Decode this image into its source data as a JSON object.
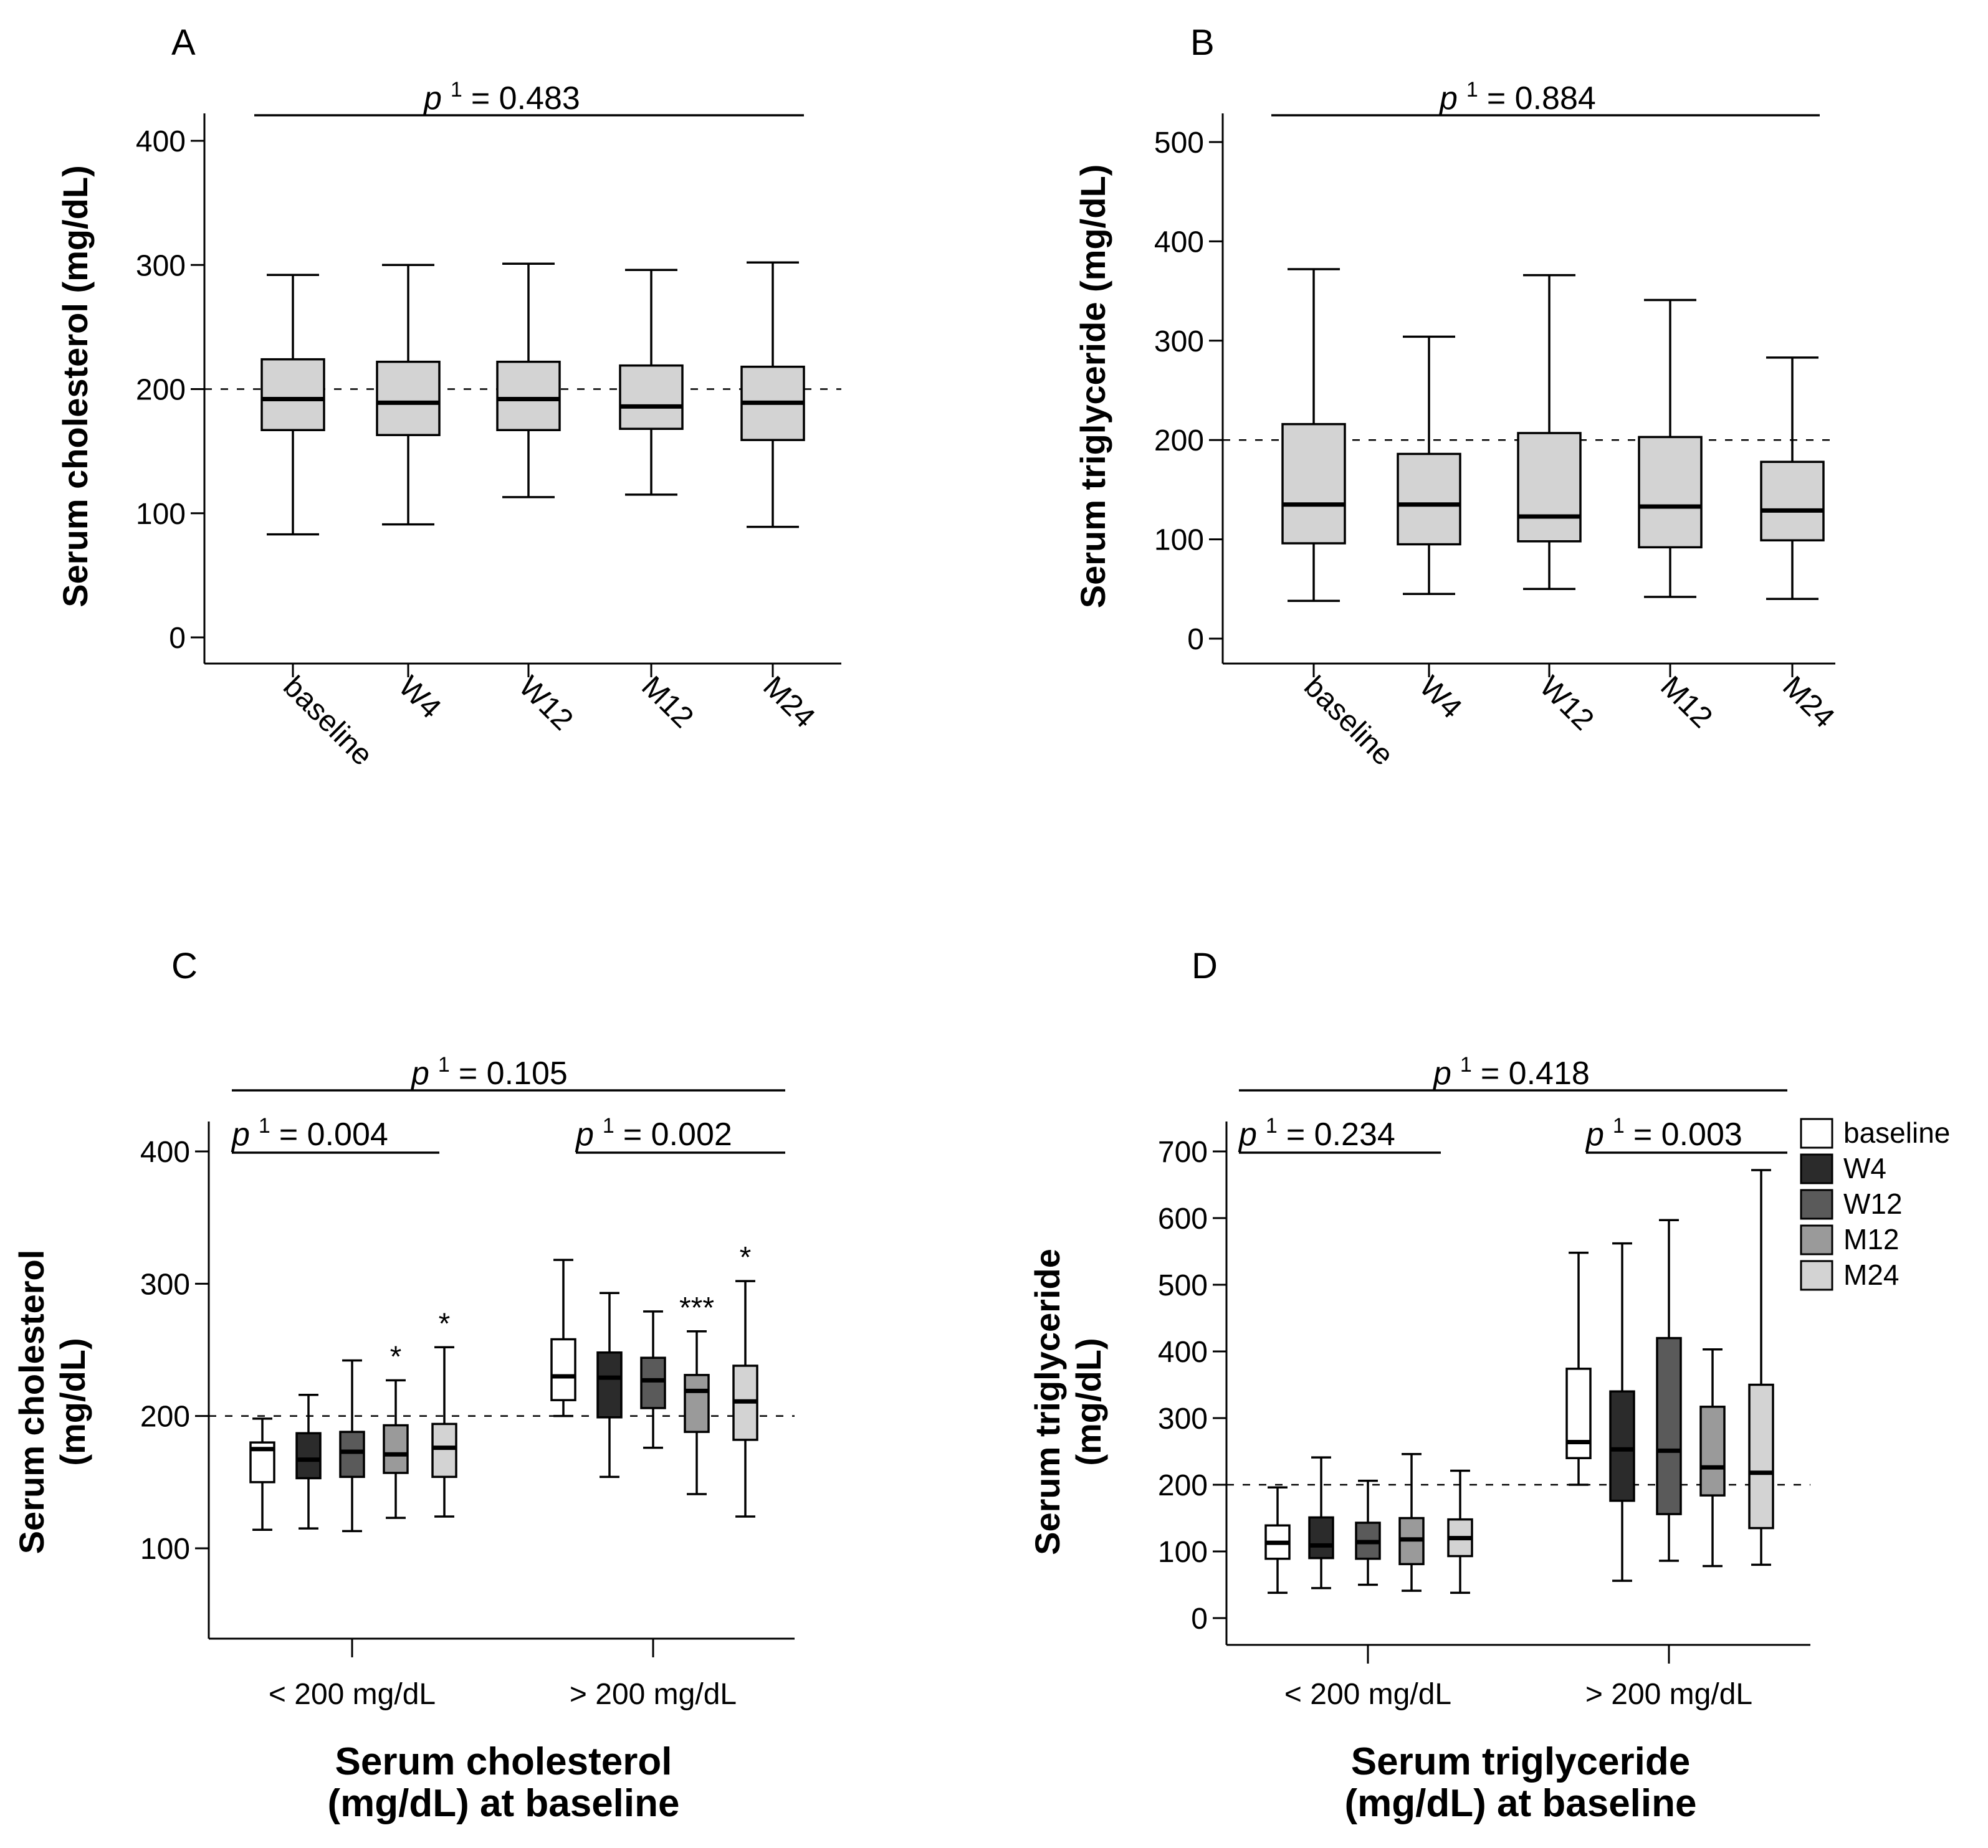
{
  "chart_data": [
    {
      "panel": "A",
      "type": "box",
      "ylabel": "Serum cholesterol (mg/dL)",
      "xlabel": "",
      "ylim": [
        0,
        400
      ],
      "yticks": [
        0,
        100,
        200,
        300,
        400
      ],
      "reference_line": 200,
      "categories": [
        "baseline",
        "W4",
        "W12",
        "M12",
        "M24"
      ],
      "boxes": [
        {
          "category": "baseline",
          "min": 83,
          "q1": 167,
          "median": 192,
          "q3": 224,
          "max": 292,
          "fill": "#d3d3d3"
        },
        {
          "category": "W4",
          "min": 91,
          "q1": 163,
          "median": 189,
          "q3": 222,
          "max": 300,
          "fill": "#d3d3d3"
        },
        {
          "category": "W12",
          "min": 113,
          "q1": 167,
          "median": 192,
          "q3": 222,
          "max": 301,
          "fill": "#d3d3d3"
        },
        {
          "category": "M12",
          "min": 115,
          "q1": 168,
          "median": 186,
          "q3": 219,
          "max": 296,
          "fill": "#d3d3d3"
        },
        {
          "category": "M24",
          "min": 89,
          "q1": 159,
          "median": 189,
          "q3": 218,
          "max": 302,
          "fill": "#d3d3d3"
        }
      ],
      "annotations": [
        {
          "text": "= 0.483",
          "p": "p",
          "sup": "1"
        }
      ]
    },
    {
      "panel": "B",
      "type": "box",
      "ylabel": "Serum triglyceride (mg/dL)",
      "xlabel": "",
      "ylim": [
        0,
        500
      ],
      "yticks": [
        0,
        100,
        200,
        300,
        400,
        500
      ],
      "reference_line": 200,
      "categories": [
        "baseline",
        "W4",
        "W12",
        "M12",
        "M24"
      ],
      "boxes": [
        {
          "category": "baseline",
          "min": 38,
          "q1": 96,
          "median": 135,
          "q3": 216,
          "max": 372,
          "fill": "#d3d3d3"
        },
        {
          "category": "W4",
          "min": 45,
          "q1": 95,
          "median": 135,
          "q3": 186,
          "max": 304,
          "fill": "#d3d3d3"
        },
        {
          "category": "W12",
          "min": 50,
          "q1": 98,
          "median": 123,
          "q3": 207,
          "max": 366,
          "fill": "#d3d3d3"
        },
        {
          "category": "M12",
          "min": 42,
          "q1": 92,
          "median": 133,
          "q3": 203,
          "max": 341,
          "fill": "#d3d3d3"
        },
        {
          "category": "M24",
          "min": 40,
          "q1": 99,
          "median": 129,
          "q3": 178,
          "max": 283,
          "fill": "#d3d3d3"
        }
      ],
      "annotations": [
        {
          "text": "= 0.884",
          "p": "p",
          "sup": "1"
        }
      ]
    },
    {
      "panel": "C",
      "type": "box",
      "ylabel": [
        "Serum cholesterol",
        "(mg/dL)"
      ],
      "xlabel": [
        "Serum cholesterol",
        "(mg/dL) at baseline"
      ],
      "ylim": [
        100,
        400
      ],
      "yticks": [
        100,
        200,
        300,
        400
      ],
      "reference_line": 200,
      "groups": [
        "< 200 mg/dL",
        "> 200 mg/dL"
      ],
      "series": [
        {
          "name": "baseline",
          "fill": "#ffffff"
        },
        {
          "name": "W4",
          "fill": "#2b2b2b"
        },
        {
          "name": "W12",
          "fill": "#5a5a5a"
        },
        {
          "name": "M12",
          "fill": "#9a9a9a"
        },
        {
          "name": "M24",
          "fill": "#d3d3d3"
        }
      ],
      "boxes": [
        {
          "group": "< 200 mg/dL",
          "series": "baseline",
          "min": 114,
          "q1": 150,
          "median": 175,
          "q3": 180,
          "max": 198,
          "star": ""
        },
        {
          "group": "< 200 mg/dL",
          "series": "W4",
          "min": 115,
          "q1": 153,
          "median": 167,
          "q3": 187,
          "max": 216,
          "star": ""
        },
        {
          "group": "< 200 mg/dL",
          "series": "W12",
          "min": 113,
          "q1": 154,
          "median": 173,
          "q3": 188,
          "max": 242,
          "star": ""
        },
        {
          "group": "< 200 mg/dL",
          "series": "M12",
          "min": 123,
          "q1": 157,
          "median": 171,
          "q3": 193,
          "max": 227,
          "star": "*"
        },
        {
          "group": "< 200 mg/dL",
          "series": "M24",
          "min": 124,
          "q1": 154,
          "median": 176,
          "q3": 194,
          "max": 252,
          "star": "*"
        },
        {
          "group": "> 200 mg/dL",
          "series": "baseline",
          "min": 200,
          "q1": 212,
          "median": 230,
          "q3": 258,
          "max": 318,
          "star": ""
        },
        {
          "group": "> 200 mg/dL",
          "series": "W4",
          "min": 154,
          "q1": 199,
          "median": 229,
          "q3": 248,
          "max": 293,
          "star": ""
        },
        {
          "group": "> 200 mg/dL",
          "series": "W12",
          "min": 176,
          "q1": 206,
          "median": 227,
          "q3": 244,
          "max": 279,
          "star": ""
        },
        {
          "group": "> 200 mg/dL",
          "series": "M12",
          "min": 141,
          "q1": 188,
          "median": 219,
          "q3": 231,
          "max": 264,
          "star": "***"
        },
        {
          "group": "> 200 mg/dL",
          "series": "M24",
          "min": 124,
          "q1": 182,
          "median": 211,
          "q3": 238,
          "max": 302,
          "star": "*"
        }
      ],
      "annotations": [
        {
          "scope": "all",
          "p": "p",
          "sup": "1",
          "text": "= 0.105"
        },
        {
          "scope": "< 200 mg/dL",
          "p": "p",
          "sup": "1",
          "text": "= 0.004"
        },
        {
          "scope": "> 200 mg/dL",
          "p": "p",
          "sup": "1",
          "text": "= 0.002"
        }
      ]
    },
    {
      "panel": "D",
      "type": "box",
      "ylabel": [
        "Serum triglyceride",
        "(mg/dL)"
      ],
      "xlabel": [
        "Serum triglyceride",
        "(mg/dL) at baseline"
      ],
      "ylim": [
        0,
        700
      ],
      "yticks": [
        0,
        100,
        200,
        300,
        400,
        500,
        600,
        700
      ],
      "reference_line": 200,
      "groups": [
        "< 200 mg/dL",
        "> 200 mg/dL"
      ],
      "legend": {
        "position": "right",
        "entries": [
          "baseline",
          "W4",
          "W12",
          "M12",
          "M24"
        ]
      },
      "series": [
        {
          "name": "baseline",
          "fill": "#ffffff"
        },
        {
          "name": "W4",
          "fill": "#2b2b2b"
        },
        {
          "name": "W12",
          "fill": "#5a5a5a"
        },
        {
          "name": "M12",
          "fill": "#9a9a9a"
        },
        {
          "name": "M24",
          "fill": "#d3d3d3"
        }
      ],
      "boxes": [
        {
          "group": "< 200 mg/dL",
          "series": "baseline",
          "min": 38,
          "q1": 89,
          "median": 113,
          "q3": 139,
          "max": 196
        },
        {
          "group": "< 200 mg/dL",
          "series": "W4",
          "min": 45,
          "q1": 90,
          "median": 109,
          "q3": 151,
          "max": 241
        },
        {
          "group": "< 200 mg/dL",
          "series": "W12",
          "min": 50,
          "q1": 89,
          "median": 114,
          "q3": 143,
          "max": 206
        },
        {
          "group": "< 200 mg/dL",
          "series": "M12",
          "min": 41,
          "q1": 81,
          "median": 118,
          "q3": 150,
          "max": 246
        },
        {
          "group": "< 200 mg/dL",
          "series": "M24",
          "min": 38,
          "q1": 93,
          "median": 120,
          "q3": 148,
          "max": 221
        },
        {
          "group": "> 200 mg/dL",
          "series": "baseline",
          "min": 200,
          "q1": 240,
          "median": 264,
          "q3": 374,
          "max": 548
        },
        {
          "group": "> 200 mg/dL",
          "series": "W4",
          "min": 56,
          "q1": 176,
          "median": 253,
          "q3": 340,
          "max": 562
        },
        {
          "group": "> 200 mg/dL",
          "series": "W12",
          "min": 86,
          "q1": 156,
          "median": 251,
          "q3": 420,
          "max": 597
        },
        {
          "group": "> 200 mg/dL",
          "series": "M12",
          "min": 78,
          "q1": 184,
          "median": 226,
          "q3": 317,
          "max": 403
        },
        {
          "group": "> 200 mg/dL",
          "series": "M24",
          "min": 80,
          "q1": 135,
          "median": 218,
          "q3": 350,
          "max": 672
        }
      ],
      "annotations": [
        {
          "scope": "all",
          "p": "p",
          "sup": "1",
          "text": "= 0.418"
        },
        {
          "scope": "< 200 mg/dL",
          "p": "p",
          "sup": "1",
          "text": "= 0.234"
        },
        {
          "scope": "> 200 mg/dL",
          "p": "p",
          "sup": "1",
          "text": "= 0.003"
        }
      ]
    }
  ]
}
